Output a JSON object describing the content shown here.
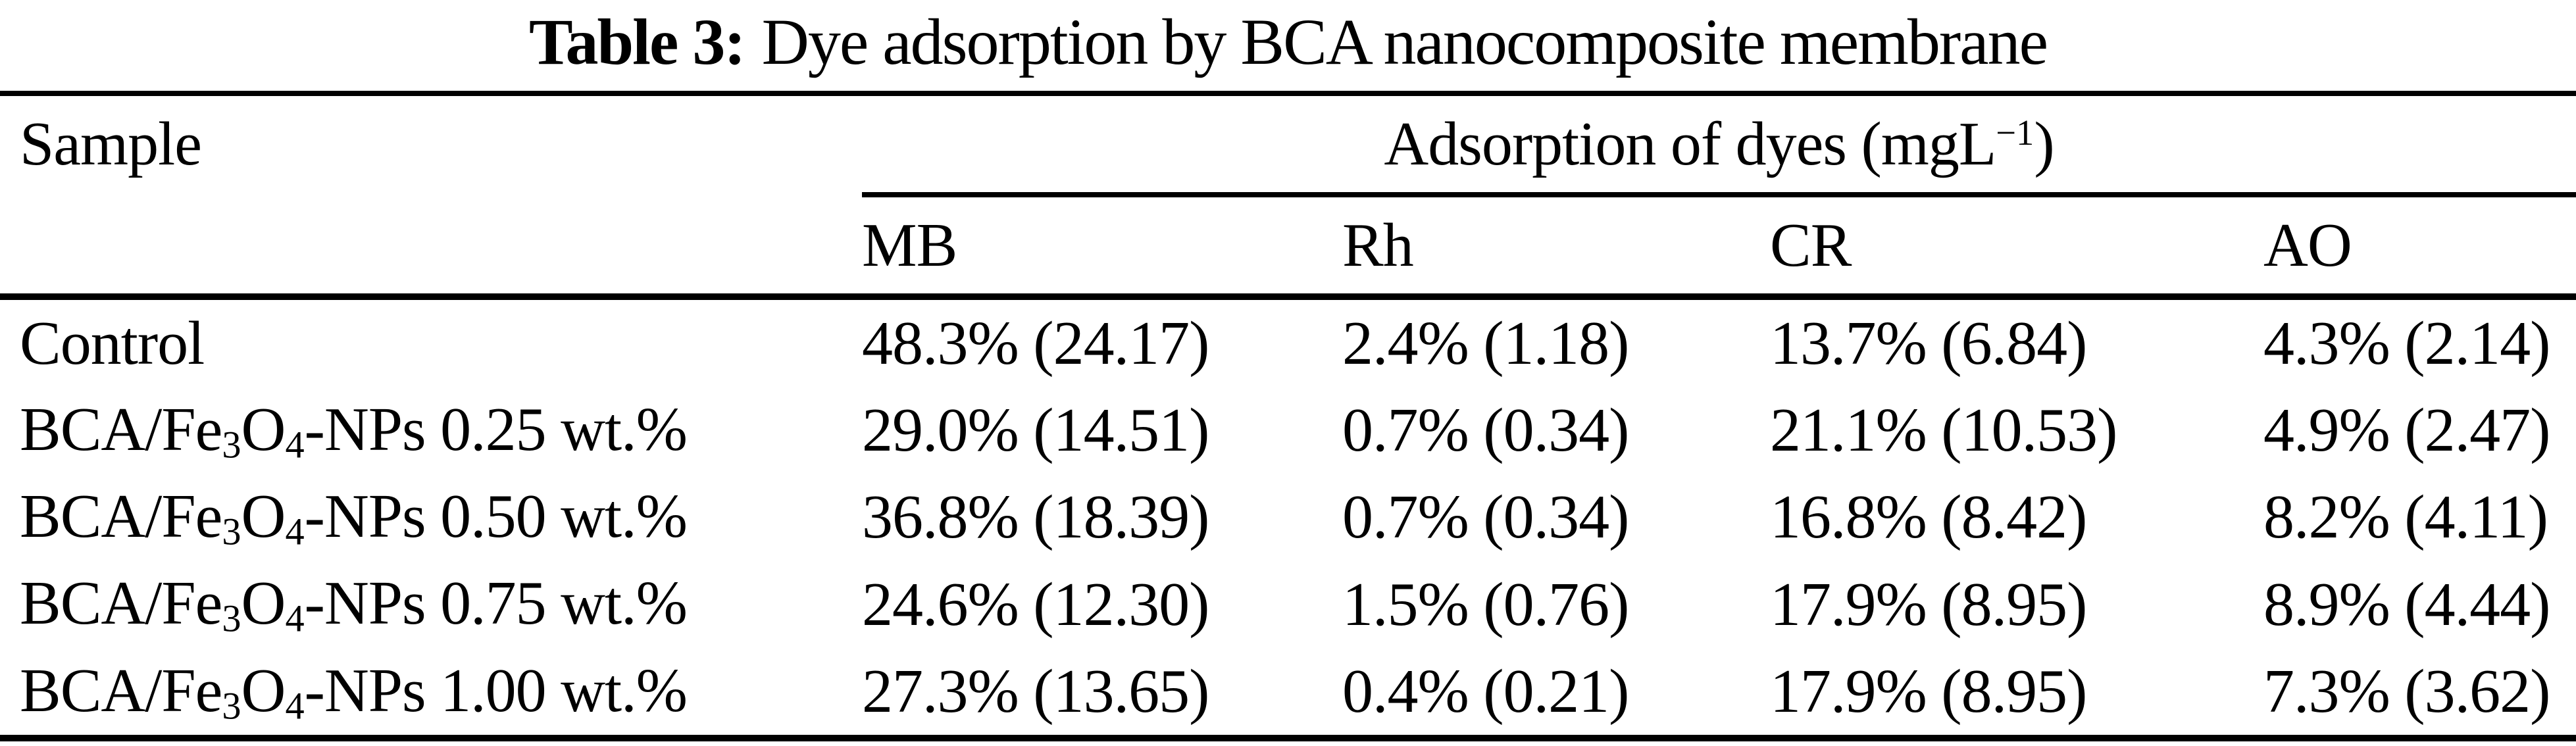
{
  "colors": {
    "background": "#ffffff",
    "text": "#000000",
    "rule": "#000000"
  },
  "title": {
    "label": "Table 3:",
    "text": "Dye adsorption by BCA nanocomposite membrane"
  },
  "table": {
    "sample_header": "Sample",
    "group_header": {
      "pre": "Adsorption of dyes (mgL",
      "sup": "−1",
      "post": ")"
    },
    "dye_columns": [
      "MB",
      "Rh",
      "CR",
      "AO"
    ],
    "rows": [
      {
        "sample": [
          {
            "text": "Control"
          }
        ],
        "values": [
          "48.3% (24.17)",
          "2.4% (1.18)",
          "13.7% (6.84)",
          "4.3% (2.14)"
        ]
      },
      {
        "sample": [
          {
            "text": "BCA/Fe"
          },
          {
            "sub": "3"
          },
          {
            "text": "O"
          },
          {
            "sub": "4"
          },
          {
            "text": "-NPs 0.25 wt.%"
          }
        ],
        "values": [
          "29.0% (14.51)",
          "0.7% (0.34)",
          "21.1% (10.53)",
          "4.9% (2.47)"
        ]
      },
      {
        "sample": [
          {
            "text": "BCA/Fe"
          },
          {
            "sub": "3"
          },
          {
            "text": "O"
          },
          {
            "sub": "4"
          },
          {
            "text": "-NPs 0.50 wt.%"
          }
        ],
        "values": [
          "36.8% (18.39)",
          "0.7% (0.34)",
          "16.8% (8.42)",
          "8.2% (4.11)"
        ]
      },
      {
        "sample": [
          {
            "text": "BCA/Fe"
          },
          {
            "sub": "3"
          },
          {
            "text": "O"
          },
          {
            "sub": "4"
          },
          {
            "text": "-NPs 0.75 wt.%"
          }
        ],
        "values": [
          "24.6% (12.30)",
          "1.5% (0.76)",
          "17.9% (8.95)",
          "8.9% (4.44)"
        ]
      },
      {
        "sample": [
          {
            "text": "BCA/Fe"
          },
          {
            "sub": "3"
          },
          {
            "text": "O"
          },
          {
            "sub": "4"
          },
          {
            "text": "-NPs 1.00 wt.%"
          }
        ],
        "values": [
          "27.3% (13.65)",
          "0.4% (0.21)",
          "17.9% (8.95)",
          "7.3% (3.62)"
        ]
      }
    ]
  }
}
